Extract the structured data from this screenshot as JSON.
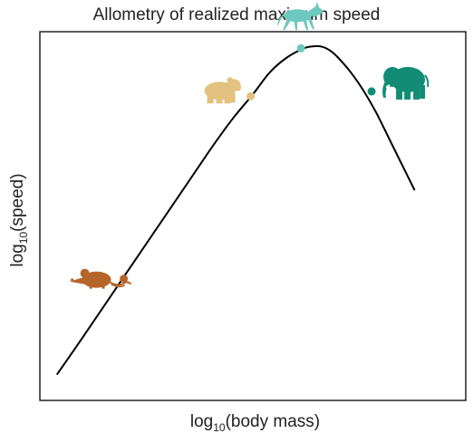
{
  "chart_data": {
    "type": "line",
    "title": "Allometry of realized maximum speed",
    "xlabel": {
      "prefix": "log",
      "sub": "10",
      "suffix": "(body mass)"
    },
    "ylabel": {
      "prefix": "log",
      "sub": "10",
      "suffix": "(speed)"
    },
    "grid": false,
    "xlim": [
      0,
      1
    ],
    "ylim": [
      0,
      1
    ],
    "curve": {
      "x": [
        0.04,
        0.1,
        0.2,
        0.3,
        0.4,
        0.45,
        0.5,
        0.54,
        0.58,
        0.62,
        0.64,
        0.66,
        0.68,
        0.7,
        0.73,
        0.76,
        0.79,
        0.82,
        0.85,
        0.88
      ],
      "y": [
        0.07,
        0.17,
        0.34,
        0.51,
        0.68,
        0.76,
        0.83,
        0.89,
        0.93,
        0.955,
        0.96,
        0.96,
        0.95,
        0.93,
        0.89,
        0.84,
        0.78,
        0.71,
        0.64,
        0.57
      ]
    },
    "points": [
      {
        "animal": "mouse",
        "x": 0.197,
        "y": 0.33,
        "color": "#B5652A",
        "icon": "mouse-icon"
      },
      {
        "animal": "bear",
        "x": 0.495,
        "y": 0.825,
        "color": "#E2C27E",
        "icon": "bear-icon"
      },
      {
        "animal": "wolf",
        "x": 0.613,
        "y": 0.955,
        "color": "#6DC9BE",
        "icon": "wolf-icon"
      },
      {
        "animal": "elephant",
        "x": 0.779,
        "y": 0.838,
        "color": "#138C76",
        "icon": "elephant-icon"
      }
    ],
    "colors": {
      "curve": "#000000",
      "frame": "#000000"
    }
  }
}
